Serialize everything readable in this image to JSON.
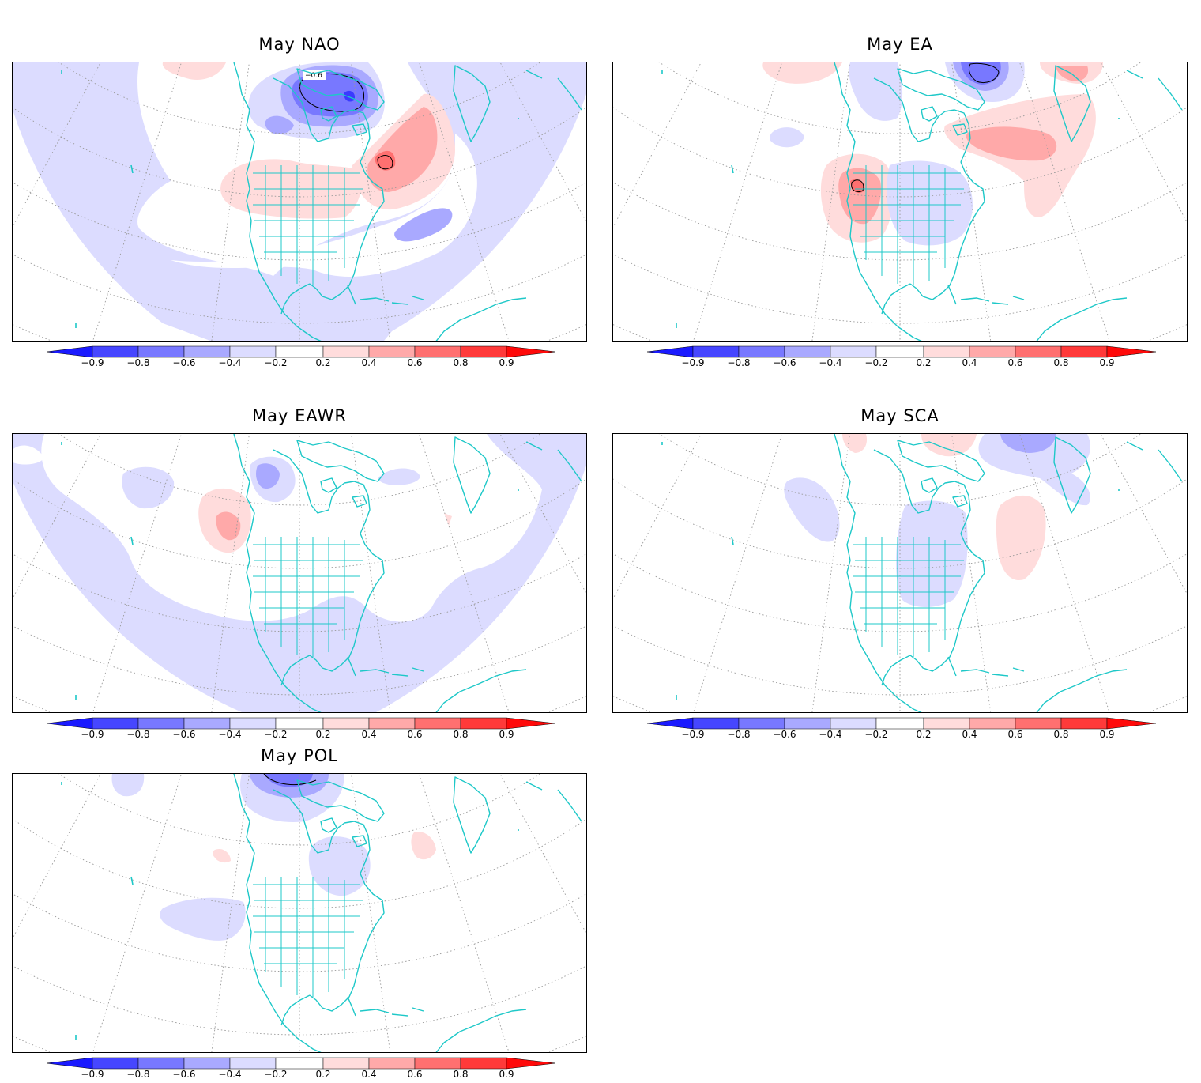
{
  "colorbar": {
    "levels": [
      "-0.9",
      "-0.8",
      "-0.6",
      "-0.4",
      "-0.2",
      "0.2",
      "0.4",
      "0.6",
      "0.8",
      "0.9"
    ],
    "neg_colors": [
      "#1a1aff",
      "#4646ff",
      "#7878ff",
      "#a9a9ff",
      "#dcdcff"
    ],
    "pos_colors": [
      "#ffdcdc",
      "#ffa9a9",
      "#ff7070",
      "#ff3a3a",
      "#ff0a0a"
    ]
  },
  "colors": {
    "coastline": "#1ec8c8",
    "neg_light": "#dcdcff",
    "neg_mid": "#a9a9ff",
    "neg_strong": "#7878ff",
    "neg_deep": "#3a3aff",
    "pos_light": "#ffdcdc",
    "pos_mid": "#ffa9a9",
    "pos_strong": "#ff7070",
    "grid": "#999999"
  },
  "panels": [
    {
      "title": "May NAO",
      "contour_label": "-0.6"
    },
    {
      "title": "May EA"
    },
    {
      "title": "May EAWR"
    },
    {
      "title": "May SCA"
    },
    {
      "title": "May POL"
    }
  ]
}
